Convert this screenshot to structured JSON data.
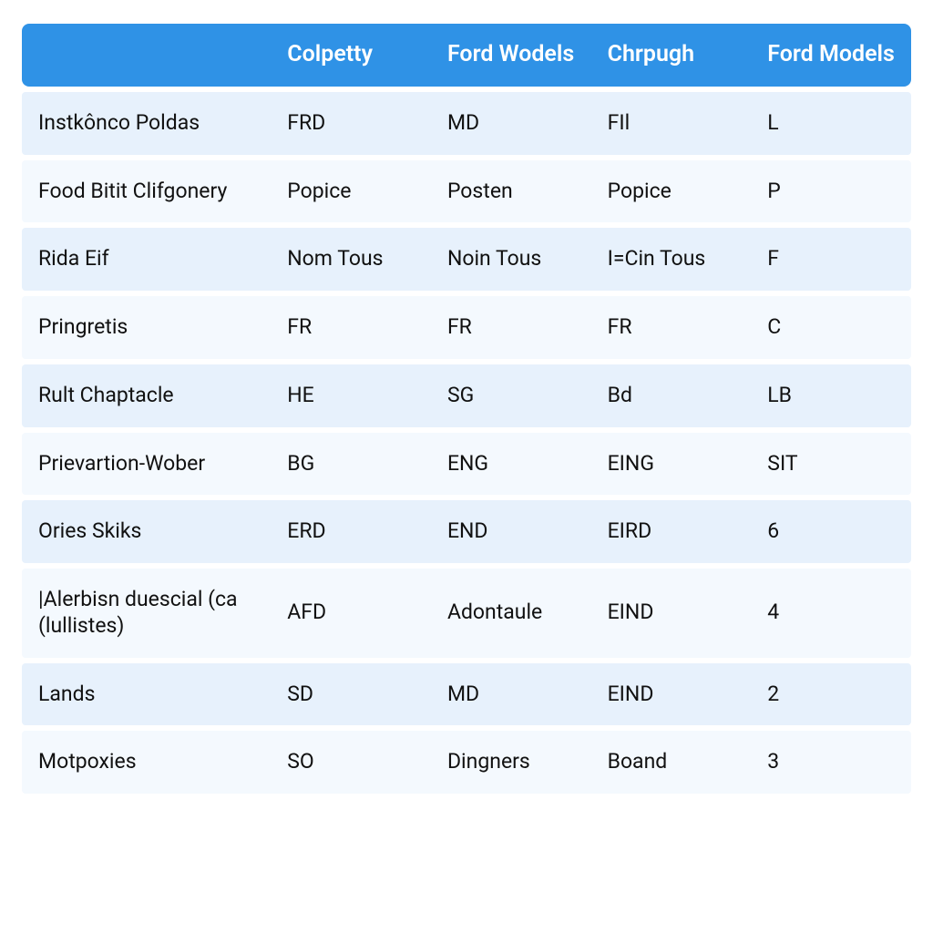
{
  "table": {
    "header_bg": "#2f92e6",
    "header_text_color": "#ffffff",
    "row_bg_even": "#e7f1fc",
    "row_bg_odd": "#f4f9fe",
    "cell_text_color": "#111111",
    "header_fontsize": 25,
    "header_fontweight": 600,
    "cell_fontsize": 23,
    "columns": [
      "",
      "Colpetty",
      "Ford Wodels",
      "Chrpugh",
      "Ford Models"
    ],
    "column_widths_pct": [
      28,
      18,
      18,
      18,
      18
    ],
    "rows": [
      [
        "Instkônco Poldas",
        "FRD",
        "MD",
        "FIl",
        "L"
      ],
      [
        "Food Bitit Clifgonery",
        "Popice",
        "Posten",
        "Popice",
        "P"
      ],
      [
        "Rida Eif",
        "Nom Tous",
        "Noin Tous",
        "I=Cin Tous",
        "F"
      ],
      [
        "Pringretis",
        "FR",
        "FR",
        "FR",
        "C"
      ],
      [
        "Rult Chaptacle",
        "HE",
        "SG",
        "Bd",
        "LB"
      ],
      [
        "Prievartion-Wober",
        "BG",
        "ENG",
        "EING",
        "SIT"
      ],
      [
        "Ories Skiks",
        "ERD",
        "END",
        "EIRD",
        "6"
      ],
      [
        "|Alerbisn duescial (ca (lullistes)",
        "AFD",
        "Adontaule",
        "EIND",
        "4"
      ],
      [
        "Lands",
        "SD",
        "MD",
        "EIND",
        "2"
      ],
      [
        "Motpoxies",
        "SO",
        "Dingners",
        "Boand",
        "3"
      ]
    ]
  }
}
